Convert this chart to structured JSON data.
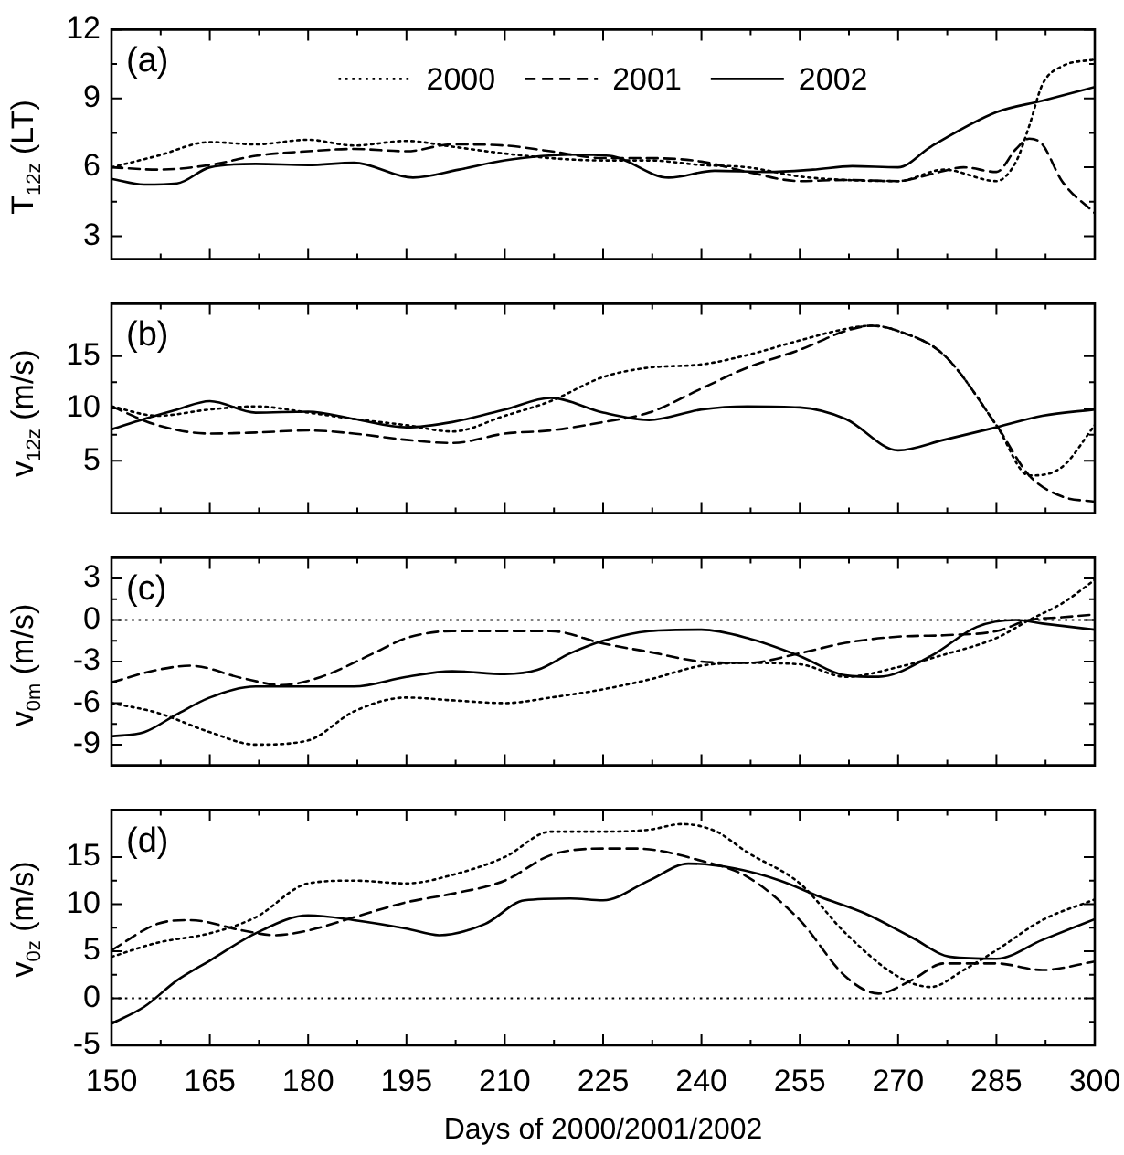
{
  "chart_data": [
    {
      "type": "line",
      "ylabel": "T$_{12z}$ (LT)",
      "annotations": [
        "(a)"
      ],
      "legend": "top",
      "tick_labels": "y",
      "marker": "none",
      "xlim": [
        150,
        300
      ],
      "xticks": [
        150,
        165,
        180,
        195,
        210,
        225,
        240,
        255,
        270,
        285,
        300
      ],
      "ylim": [
        2,
        12
      ],
      "yticks": [
        3,
        6,
        9,
        12
      ],
      "series": [
        {
          "name": "2000",
          "color": "#000000",
          "line_style": "dotted",
          "x": [
            150,
            157,
            165,
            172,
            180,
            187,
            195,
            202,
            210,
            217,
            225,
            232,
            240,
            247,
            255,
            262,
            270,
            277,
            285,
            288,
            290,
            292,
            295,
            300
          ],
          "values": [
            6.0,
            6.5,
            7.1,
            7.0,
            7.2,
            6.95,
            7.15,
            6.9,
            6.6,
            6.4,
            6.3,
            6.3,
            6.1,
            6.0,
            5.6,
            5.45,
            5.4,
            5.9,
            5.4,
            6.25,
            7.8,
            9.6,
            10.4,
            10.7
          ]
        },
        {
          "name": "2001",
          "color": "#000000",
          "line_style": "dashed",
          "x": [
            150,
            157,
            165,
            172,
            180,
            187,
            195,
            202,
            210,
            217,
            225,
            232,
            240,
            247,
            255,
            262,
            270,
            275,
            280,
            285,
            288,
            290,
            292,
            295,
            300
          ],
          "values": [
            6.0,
            5.9,
            6.1,
            6.5,
            6.7,
            6.8,
            6.7,
            7.0,
            6.95,
            6.7,
            6.4,
            6.4,
            6.25,
            5.8,
            5.4,
            5.45,
            5.4,
            5.7,
            6.0,
            5.8,
            6.8,
            7.25,
            7.0,
            5.4,
            4.0
          ]
        },
        {
          "name": "2002",
          "color": "#000000",
          "line_style": "solid",
          "x": [
            150,
            155,
            160,
            165,
            172,
            180,
            187,
            196,
            203,
            210,
            220,
            226,
            235,
            242,
            250,
            257,
            263,
            270,
            275,
            285,
            292,
            300
          ],
          "values": [
            5.5,
            5.25,
            5.3,
            6.0,
            6.15,
            6.1,
            6.2,
            5.55,
            5.9,
            6.3,
            6.55,
            6.5,
            5.55,
            5.85,
            5.8,
            5.9,
            6.05,
            6.0,
            6.9,
            8.4,
            8.9,
            9.5
          ]
        }
      ]
    },
    {
      "type": "line",
      "ylabel": "v$_{12z}$ (m/s)",
      "annotations": [
        "(b)"
      ],
      "legend": false,
      "tick_labels": "y",
      "marker": "none",
      "xlim": [
        150,
        300
      ],
      "xticks": [
        150,
        165,
        180,
        195,
        210,
        225,
        240,
        255,
        270,
        285,
        300
      ],
      "ylim": [
        0,
        20
      ],
      "yticks": [
        5,
        10,
        15
      ],
      "series": [
        {
          "color": "#000000",
          "line_style": "dotted",
          "x": [
            150,
            157,
            165,
            172,
            180,
            187,
            195,
            202,
            210,
            217,
            225,
            232,
            240,
            247,
            255,
            262,
            266,
            270,
            277,
            285,
            290,
            295,
            300
          ],
          "values": [
            10.2,
            9.3,
            9.9,
            10.2,
            9.6,
            9.0,
            8.4,
            7.8,
            9.3,
            10.7,
            13.0,
            13.9,
            14.2,
            15.1,
            16.5,
            17.6,
            17.9,
            17.4,
            15.1,
            8.4,
            3.6,
            4.4,
            8.4
          ]
        },
        {
          "color": "#000000",
          "line_style": "dashed",
          "x": [
            150,
            157,
            165,
            172,
            180,
            187,
            195,
            202,
            210,
            217,
            225,
            232,
            240,
            247,
            255,
            262,
            266,
            270,
            277,
            285,
            290,
            295,
            300
          ],
          "values": [
            10.2,
            8.4,
            7.6,
            7.7,
            7.9,
            7.6,
            7.0,
            6.7,
            7.6,
            7.9,
            8.7,
            9.6,
            11.9,
            13.9,
            15.6,
            17.4,
            17.9,
            17.4,
            15.1,
            8.4,
            3.6,
            1.6,
            1.1
          ]
        },
        {
          "color": "#000000",
          "line_style": "solid",
          "x": [
            150,
            155,
            160,
            165,
            172,
            180,
            187,
            195,
            202,
            210,
            217,
            225,
            232,
            240,
            247,
            255,
            262,
            270,
            277,
            285,
            292,
            300
          ],
          "values": [
            8.0,
            9.0,
            9.9,
            10.7,
            9.6,
            9.7,
            9.0,
            8.2,
            8.7,
            9.9,
            11.0,
            9.6,
            8.9,
            9.9,
            10.2,
            10.1,
            9.0,
            6.0,
            7.0,
            8.2,
            9.3,
            9.9
          ]
        }
      ]
    },
    {
      "type": "line",
      "ylabel": "v$_{0m}$ (m/s)",
      "annotations": [
        "(c)"
      ],
      "legend": false,
      "tick_labels": "y",
      "marker": "none",
      "xlim": [
        150,
        300
      ],
      "xticks": [
        150,
        165,
        180,
        195,
        210,
        225,
        240,
        255,
        270,
        285,
        300
      ],
      "ylim": [
        -10.5,
        4.5
      ],
      "yticks": [
        -9,
        -6,
        -3,
        0,
        3
      ],
      "ref_lines": [
        {
          "axis": "y",
          "value": 0,
          "line_style": "dotted"
        }
      ],
      "series": [
        {
          "color": "#000000",
          "line_style": "dotted",
          "x": [
            150,
            157,
            165,
            172,
            180,
            187,
            195,
            202,
            210,
            217,
            225,
            232,
            240,
            247,
            255,
            262,
            270,
            277,
            285,
            290,
            295,
            300
          ],
          "values": [
            -6.0,
            -6.7,
            -8.1,
            -9.0,
            -8.7,
            -6.6,
            -5.6,
            -5.8,
            -6.0,
            -5.6,
            -5.0,
            -4.3,
            -3.3,
            -3.1,
            -3.2,
            -4.1,
            -3.4,
            -2.5,
            -1.3,
            0,
            1.2,
            2.9
          ]
        },
        {
          "color": "#000000",
          "line_style": "dashed",
          "x": [
            150,
            157,
            162,
            170,
            176,
            182,
            190,
            195,
            202,
            210,
            217,
            225,
            232,
            240,
            247,
            255,
            262,
            270,
            277,
            285,
            290,
            295,
            300
          ],
          "values": [
            -4.5,
            -3.6,
            -3.3,
            -4.2,
            -4.7,
            -4.1,
            -2.4,
            -1.3,
            -0.8,
            -0.8,
            -0.8,
            -1.7,
            -2.3,
            -3.0,
            -3.1,
            -2.4,
            -1.65,
            -1.2,
            -1.1,
            -0.8,
            0,
            0.2,
            0.4
          ]
        },
        {
          "color": "#000000",
          "line_style": "solid",
          "x": [
            150,
            155,
            160,
            165,
            172,
            180,
            187,
            195,
            202,
            210,
            215,
            220,
            225,
            232,
            240,
            247,
            255,
            262,
            267,
            275,
            282,
            288,
            292,
            300
          ],
          "values": [
            -8.4,
            -8.1,
            -6.8,
            -5.6,
            -4.8,
            -4.8,
            -4.8,
            -4.1,
            -3.7,
            -3.9,
            -3.6,
            -2.4,
            -1.5,
            -0.8,
            -0.7,
            -1.3,
            -2.6,
            -4.0,
            -4.1,
            -2.6,
            -0.5,
            0,
            -0.25,
            -0.7
          ]
        }
      ]
    },
    {
      "type": "line",
      "ylabel": "v$_{0z}$ (m/s)",
      "xlabel": "Days of 2000/2001/2002",
      "annotations": [
        "(d)"
      ],
      "legend": false,
      "marker": "none",
      "xlim": [
        150,
        300
      ],
      "xticks": [
        150,
        165,
        180,
        195,
        210,
        225,
        240,
        255,
        270,
        285,
        300
      ],
      "ylim": [
        -5,
        20
      ],
      "yticks": [
        -5,
        0,
        5,
        10,
        15
      ],
      "ref_lines": [
        {
          "axis": "y",
          "value": 0,
          "line_style": "dotted"
        }
      ],
      "series": [
        {
          "color": "#000000",
          "line_style": "dotted",
          "x": [
            150,
            157,
            165,
            172,
            180,
            187,
            195,
            202,
            210,
            217,
            225,
            232,
            237,
            242,
            247,
            255,
            262,
            270,
            275,
            280,
            285,
            292,
            300
          ],
          "values": [
            4.4,
            5.9,
            6.9,
            8.6,
            12.2,
            12.5,
            12.2,
            13.1,
            15.0,
            17.7,
            17.7,
            17.9,
            18.5,
            17.8,
            15.5,
            12.2,
            6.9,
            2.3,
            1.2,
            3.0,
            5.1,
            8.3,
            10.5
          ]
        },
        {
          "color": "#000000",
          "line_style": "dashed",
          "x": [
            150,
            157,
            162,
            170,
            175,
            180,
            187,
            195,
            202,
            210,
            217,
            225,
            230,
            240,
            247,
            255,
            262,
            267,
            272,
            277,
            285,
            292,
            300
          ],
          "values": [
            5.1,
            7.9,
            8.3,
            7.2,
            6.7,
            7.2,
            8.6,
            10.2,
            11.1,
            12.5,
            15.2,
            15.9,
            15.9,
            14.6,
            12.9,
            8.3,
            2.3,
            0.5,
            1.9,
            3.7,
            3.7,
            3.0,
            3.9
          ]
        },
        {
          "color": "#000000",
          "line_style": "solid",
          "x": [
            150,
            155,
            160,
            165,
            172,
            180,
            187,
            195,
            200,
            207,
            213,
            220,
            225,
            232,
            238,
            245,
            252,
            258,
            265,
            272,
            278,
            285,
            292,
            300
          ],
          "values": [
            -2.7,
            -0.9,
            1.9,
            4.0,
            6.9,
            8.8,
            8.3,
            7.4,
            6.7,
            7.9,
            10.4,
            10.6,
            10.4,
            12.5,
            14.3,
            13.8,
            12.5,
            10.8,
            9.0,
            6.5,
            4.4,
            4.2,
            6.2,
            8.4
          ]
        }
      ]
    }
  ]
}
